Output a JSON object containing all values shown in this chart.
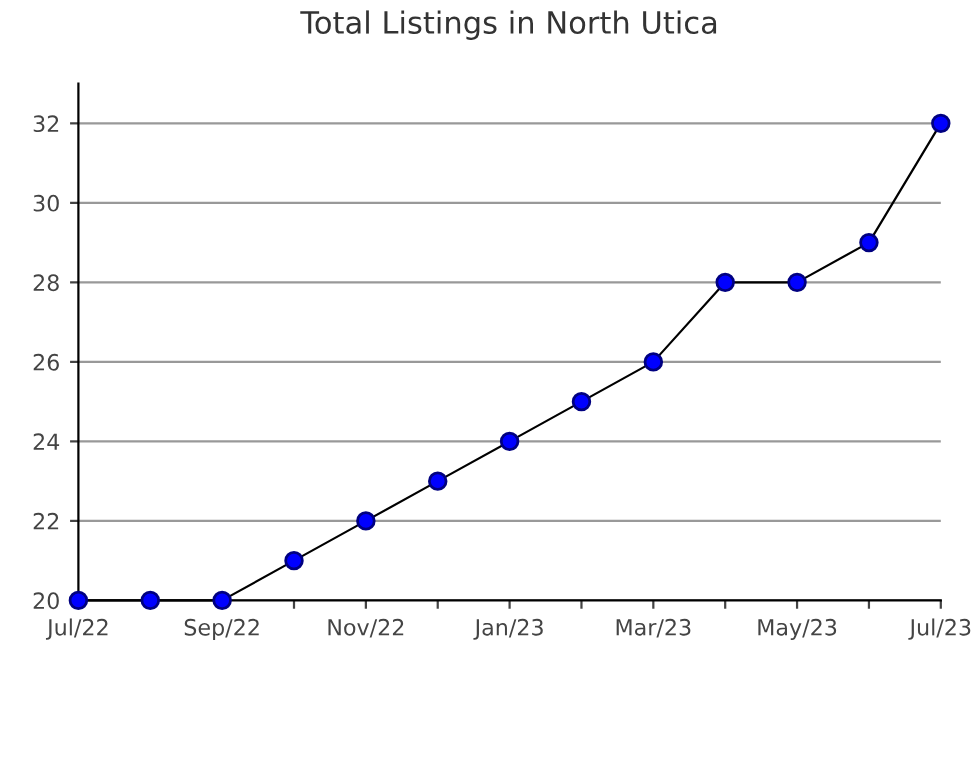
{
  "chart_data": {
    "type": "line",
    "title": "Total Listings in North Utica",
    "categories": [
      "Jul/22",
      null,
      "Sep/22",
      null,
      "Nov/22",
      null,
      "Jan/23",
      null,
      "Mar/23",
      null,
      "May/23",
      null,
      "Jul/23"
    ],
    "series": [
      {
        "color": "#0000ff",
        "values": [
          20,
          20,
          20,
          21,
          22,
          23,
          24,
          25,
          26,
          28,
          28,
          29,
          32
        ]
      }
    ],
    "ylim": [
      20,
      33
    ],
    "yticks": [
      20,
      22,
      24,
      26,
      28,
      30,
      32
    ],
    "grid": "y",
    "marker": "circle",
    "line_style": "solid",
    "legend": false
  }
}
